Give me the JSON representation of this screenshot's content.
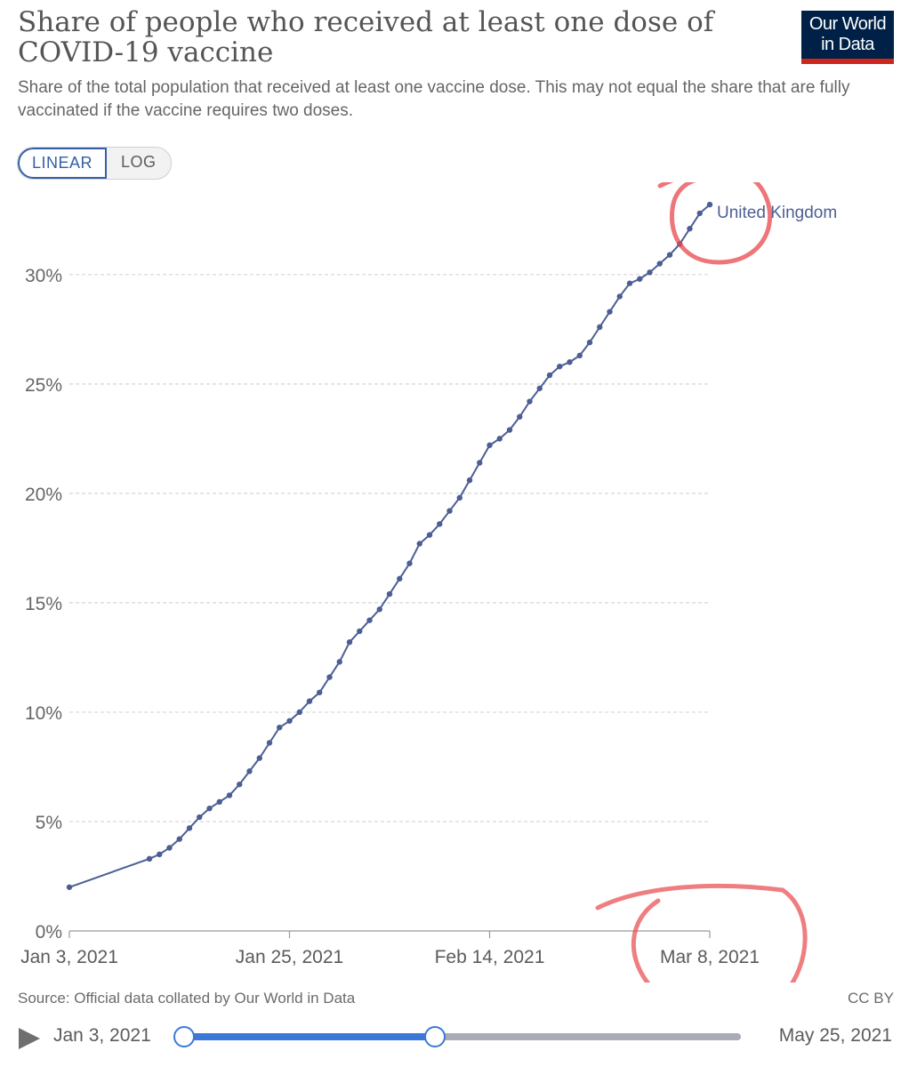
{
  "header": {
    "title": "Share of people who received at least one dose of COVID-19 vaccine",
    "subtitle": "Share of the total population that received at least one vaccine dose. This may not equal the share that are fully vaccinated if the vaccine requires two doses.",
    "logo_line1": "Our World",
    "logo_line2": "in Data"
  },
  "controls": {
    "linear_label": "LINEAR",
    "log_label": "LOG",
    "selected_scale": "linear"
  },
  "chart_data": {
    "type": "line",
    "title": "Share of people who received at least one dose of COVID-19 vaccine",
    "xlabel": "",
    "ylabel": "",
    "x_range": [
      "2021-01-03",
      "2021-03-08"
    ],
    "ylim": [
      0,
      33
    ],
    "y_ticks": [
      0,
      5,
      10,
      15,
      20,
      25,
      30
    ],
    "y_tick_labels": [
      "0%",
      "5%",
      "10%",
      "15%",
      "20%",
      "25%",
      "30%"
    ],
    "x_ticks": [
      "2021-01-03",
      "2021-01-25",
      "2021-02-14",
      "2021-03-08"
    ],
    "x_tick_labels": [
      "Jan 3, 2021",
      "Jan 25, 2021",
      "Feb 14, 2021",
      "Mar 8, 2021"
    ],
    "grid": "horizontal dashed",
    "line_color": "#4c5e94",
    "series": [
      {
        "name": "United Kingdom",
        "x": [
          "2021-01-03",
          "2021-01-11",
          "2021-01-12",
          "2021-01-13",
          "2021-01-14",
          "2021-01-15",
          "2021-01-16",
          "2021-01-17",
          "2021-01-18",
          "2021-01-19",
          "2021-01-20",
          "2021-01-21",
          "2021-01-22",
          "2021-01-23",
          "2021-01-24",
          "2021-01-25",
          "2021-01-26",
          "2021-01-27",
          "2021-01-28",
          "2021-01-29",
          "2021-01-30",
          "2021-01-31",
          "2021-02-01",
          "2021-02-02",
          "2021-02-03",
          "2021-02-04",
          "2021-02-05",
          "2021-02-06",
          "2021-02-07",
          "2021-02-08",
          "2021-02-09",
          "2021-02-10",
          "2021-02-11",
          "2021-02-12",
          "2021-02-13",
          "2021-02-14",
          "2021-02-15",
          "2021-02-16",
          "2021-02-17",
          "2021-02-18",
          "2021-02-19",
          "2021-02-20",
          "2021-02-21",
          "2021-02-22",
          "2021-02-23",
          "2021-02-24",
          "2021-02-25",
          "2021-02-26",
          "2021-02-27",
          "2021-02-28",
          "2021-03-01",
          "2021-03-02",
          "2021-03-03",
          "2021-03-04",
          "2021-03-05",
          "2021-03-06",
          "2021-03-07",
          "2021-03-08"
        ],
        "values": [
          2.0,
          3.3,
          3.5,
          3.8,
          4.2,
          4.7,
          5.2,
          5.6,
          5.9,
          6.2,
          6.7,
          7.3,
          7.9,
          8.6,
          9.3,
          9.6,
          10.0,
          10.5,
          10.9,
          11.6,
          12.3,
          13.2,
          13.7,
          14.2,
          14.7,
          15.4,
          16.1,
          16.8,
          17.7,
          18.1,
          18.6,
          19.2,
          19.8,
          20.6,
          21.4,
          22.2,
          22.5,
          22.9,
          23.5,
          24.2,
          24.8,
          25.4,
          25.8,
          26.0,
          26.3,
          26.9,
          27.6,
          28.3,
          29.0,
          29.6,
          29.8,
          30.1,
          30.5,
          30.9,
          31.4,
          32.1,
          32.8,
          33.2
        ]
      }
    ],
    "end_label": "United Kingdom"
  },
  "footer": {
    "source": "Source: Official data collated by Our World in Data",
    "license": "CC BY"
  },
  "timeline": {
    "start_label": "Jan 3, 2021",
    "end_label": "May 25, 2021",
    "range_start": "2021-01-03",
    "range_end": "2021-03-08"
  },
  "colors": {
    "accent": "#3c78d8",
    "series": "#4c5e94",
    "annotation": "#e8474c",
    "logo_bg": "#002147",
    "logo_bar": "#ce261e"
  }
}
